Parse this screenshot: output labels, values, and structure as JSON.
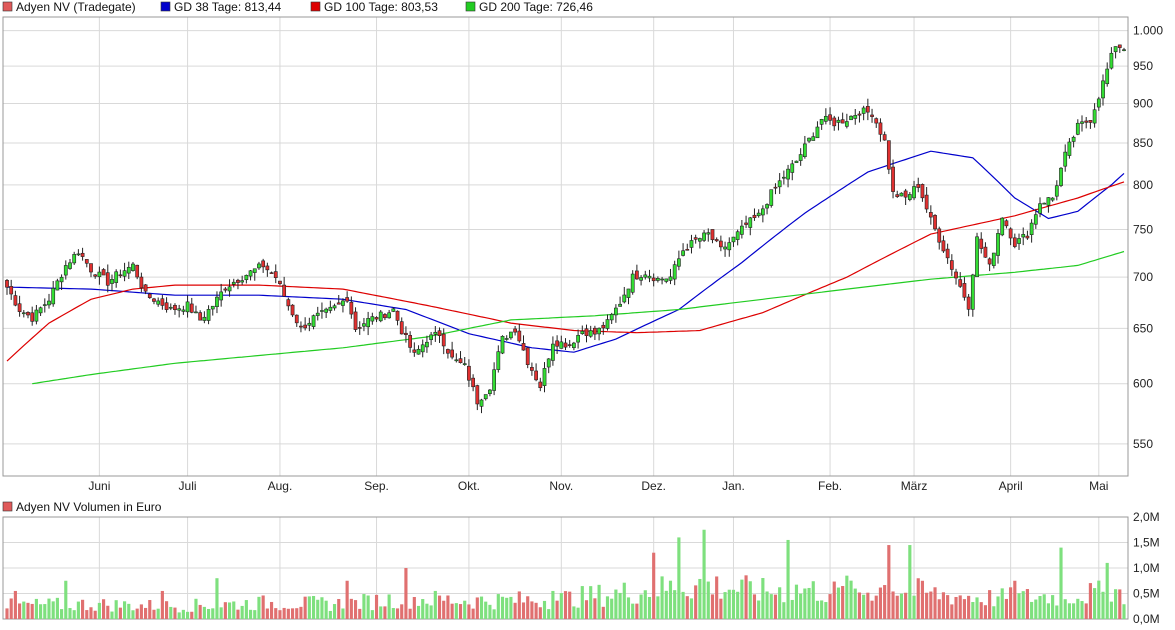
{
  "legend": [
    {
      "text": "Adyen NV (Tradegate)",
      "color": "#e05a5a"
    },
    {
      "text": "GD 38 Tage: 813,44",
      "color": "#0000cc"
    },
    {
      "text": "GD 100 Tage: 803,53",
      "color": "#dd0000"
    },
    {
      "text": "GD 200 Tage: 726,46",
      "color": "#22cc22"
    }
  ],
  "volume_legend": {
    "text": "Adyen NV Volumen in Euro",
    "color": "#e05a5a"
  },
  "chart_data": [
    {
      "type": "candlestick",
      "title": "",
      "scale": "log",
      "ylim": [
        525,
        1020
      ],
      "y_ticks": [
        {
          "v": 550,
          "label": "550"
        },
        {
          "v": 600,
          "label": "600"
        },
        {
          "v": 650,
          "label": "650"
        },
        {
          "v": 700,
          "label": "700"
        },
        {
          "v": 750,
          "label": "750"
        },
        {
          "v": 800,
          "label": "800"
        },
        {
          "v": 850,
          "label": "850"
        },
        {
          "v": 900,
          "label": "900"
        },
        {
          "v": 950,
          "label": "950"
        },
        {
          "v": 1000,
          "label": "1.000"
        }
      ],
      "x_ticks": [
        {
          "i": 22,
          "label": "Juni"
        },
        {
          "i": 43,
          "label": "Juli"
        },
        {
          "i": 65,
          "label": "Aug."
        },
        {
          "i": 88,
          "label": "Sep."
        },
        {
          "i": 110,
          "label": "Okt."
        },
        {
          "i": 132,
          "label": "Nov."
        },
        {
          "i": 154,
          "label": "Dez."
        },
        {
          "i": 173,
          "label": "Jan."
        },
        {
          "i": 196,
          "label": "Feb."
        },
        {
          "i": 216,
          "label": "März"
        },
        {
          "i": 239,
          "label": "April"
        },
        {
          "i": 260,
          "label": "Mai"
        }
      ],
      "grid": true,
      "close_anchors": [
        [
          0,
          690
        ],
        [
          3,
          668
        ],
        [
          6,
          660
        ],
        [
          10,
          678
        ],
        [
          14,
          712
        ],
        [
          17,
          727
        ],
        [
          20,
          708
        ],
        [
          24,
          695
        ],
        [
          27,
          705
        ],
        [
          30,
          712
        ],
        [
          33,
          682
        ],
        [
          36,
          676
        ],
        [
          39,
          668
        ],
        [
          43,
          672
        ],
        [
          46,
          658
        ],
        [
          49,
          672
        ],
        [
          52,
          690
        ],
        [
          55,
          698
        ],
        [
          58,
          705
        ],
        [
          61,
          712
        ],
        [
          64,
          700
        ],
        [
          67,
          672
        ],
        [
          70,
          650
        ],
        [
          73,
          660
        ],
        [
          76,
          665
        ],
        [
          79,
          672
        ],
        [
          81,
          680
        ],
        [
          83,
          650
        ],
        [
          86,
          658
        ],
        [
          89,
          662
        ],
        [
          92,
          668
        ],
        [
          94,
          648
        ],
        [
          97,
          625
        ],
        [
          100,
          640
        ],
        [
          103,
          645
        ],
        [
          106,
          622
        ],
        [
          109,
          615
        ],
        [
          112,
          585
        ],
        [
          115,
          598
        ],
        [
          118,
          640
        ],
        [
          121,
          650
        ],
        [
          124,
          620
        ],
        [
          127,
          598
        ],
        [
          130,
          638
        ],
        [
          134,
          635
        ],
        [
          137,
          648
        ],
        [
          140,
          645
        ],
        [
          143,
          655
        ],
        [
          146,
          675
        ],
        [
          149,
          700
        ],
        [
          152,
          705
        ],
        [
          155,
          698
        ],
        [
          158,
          700
        ],
        [
          161,
          728
        ],
        [
          164,
          738
        ],
        [
          167,
          745
        ],
        [
          170,
          728
        ],
        [
          173,
          740
        ],
        [
          176,
          755
        ],
        [
          179,
          765
        ],
        [
          182,
          790
        ],
        [
          185,
          810
        ],
        [
          188,
          828
        ],
        [
          190,
          845
        ],
        [
          194,
          880
        ],
        [
          197,
          875
        ],
        [
          200,
          880
        ],
        [
          203,
          890
        ],
        [
          206,
          888
        ],
        [
          209,
          852
        ],
        [
          211,
          790
        ],
        [
          214,
          785
        ],
        [
          217,
          800
        ],
        [
          220,
          760
        ],
        [
          223,
          730
        ],
        [
          226,
          700
        ],
        [
          229,
          672
        ],
        [
          231,
          740
        ],
        [
          234,
          710
        ],
        [
          237,
          765
        ],
        [
          240,
          735
        ],
        [
          243,
          745
        ],
        [
          246,
          780
        ],
        [
          249,
          785
        ],
        [
          252,
          835
        ],
        [
          255,
          870
        ],
        [
          258,
          880
        ],
        [
          260,
          910
        ],
        [
          262,
          945
        ],
        [
          264,
          980
        ],
        [
          266,
          975
        ]
      ],
      "moving_averages": [
        {
          "name": "GD 38 Tage",
          "color": "#0000cc",
          "start": 0,
          "anchors": [
            [
              0,
              690
            ],
            [
              20,
              688
            ],
            [
              40,
              682
            ],
            [
              60,
              682
            ],
            [
              80,
              678
            ],
            [
              95,
              668
            ],
            [
              110,
              645
            ],
            [
              125,
              632
            ],
            [
              135,
              628
            ],
            [
              145,
              640
            ],
            [
              160,
              668
            ],
            [
              175,
              715
            ],
            [
              190,
              768
            ],
            [
              205,
              815
            ],
            [
              220,
              840
            ],
            [
              230,
              832
            ],
            [
              240,
              785
            ],
            [
              248,
              762
            ],
            [
              255,
              770
            ],
            [
              263,
              800
            ],
            [
              266,
              813.44
            ]
          ]
        },
        {
          "name": "GD 100 Tage",
          "color": "#dd0000",
          "start": 0,
          "anchors": [
            [
              0,
              620
            ],
            [
              10,
              655
            ],
            [
              20,
              678
            ],
            [
              30,
              688
            ],
            [
              40,
              692
            ],
            [
              60,
              692
            ],
            [
              80,
              688
            ],
            [
              100,
              672
            ],
            [
              120,
              655
            ],
            [
              135,
              648
            ],
            [
              150,
              646
            ],
            [
              165,
              648
            ],
            [
              180,
              665
            ],
            [
              200,
              700
            ],
            [
              220,
              745
            ],
            [
              240,
              765
            ],
            [
              255,
              785
            ],
            [
              266,
              803.53
            ]
          ]
        },
        {
          "name": "GD 200 Tage",
          "color": "#22cc22",
          "start": 6,
          "anchors": [
            [
              6,
              600
            ],
            [
              20,
              608
            ],
            [
              40,
              618
            ],
            [
              60,
              625
            ],
            [
              80,
              632
            ],
            [
              100,
              642
            ],
            [
              120,
              658
            ],
            [
              140,
              662
            ],
            [
              160,
              668
            ],
            [
              180,
              678
            ],
            [
              200,
              688
            ],
            [
              220,
              698
            ],
            [
              240,
              705
            ],
            [
              255,
              712
            ],
            [
              266,
              726.46
            ]
          ]
        }
      ]
    },
    {
      "type": "bar",
      "title": "Adyen NV Volumen in Euro",
      "ylim": [
        0,
        2.0
      ],
      "unit": "Mio. EUR",
      "y_ticks": [
        {
          "v": 0,
          "label": "0,0M"
        },
        {
          "v": 0.5,
          "label": "0,5M"
        },
        {
          "v": 1.0,
          "label": "1,0M"
        },
        {
          "v": 1.5,
          "label": "1,5M"
        },
        {
          "v": 2.0,
          "label": "2,0M"
        }
      ],
      "volume_anchors": [
        [
          0,
          0.3
        ],
        [
          20,
          0.32
        ],
        [
          40,
          0.28
        ],
        [
          60,
          0.35
        ],
        [
          80,
          0.33
        ],
        [
          95,
          0.45
        ],
        [
          110,
          0.4
        ],
        [
          130,
          0.42
        ],
        [
          150,
          0.6
        ],
        [
          165,
          0.75
        ],
        [
          180,
          0.6
        ],
        [
          190,
          0.65
        ],
        [
          200,
          0.55
        ],
        [
          210,
          0.7
        ],
        [
          220,
          0.55
        ],
        [
          235,
          0.45
        ],
        [
          250,
          0.5
        ],
        [
          266,
          0.6
        ]
      ],
      "spikes": [
        [
          2,
          0.55
        ],
        [
          14,
          0.75
        ],
        [
          37,
          0.55
        ],
        [
          50,
          0.8
        ],
        [
          81,
          0.75
        ],
        [
          95,
          1.0
        ],
        [
          130,
          0.55
        ],
        [
          154,
          1.3
        ],
        [
          160,
          1.6
        ],
        [
          166,
          1.75
        ],
        [
          186,
          1.55
        ],
        [
          200,
          0.85
        ],
        [
          210,
          1.45
        ],
        [
          215,
          1.45
        ],
        [
          240,
          0.75
        ],
        [
          251,
          1.4
        ],
        [
          262,
          1.1
        ]
      ]
    }
  ]
}
